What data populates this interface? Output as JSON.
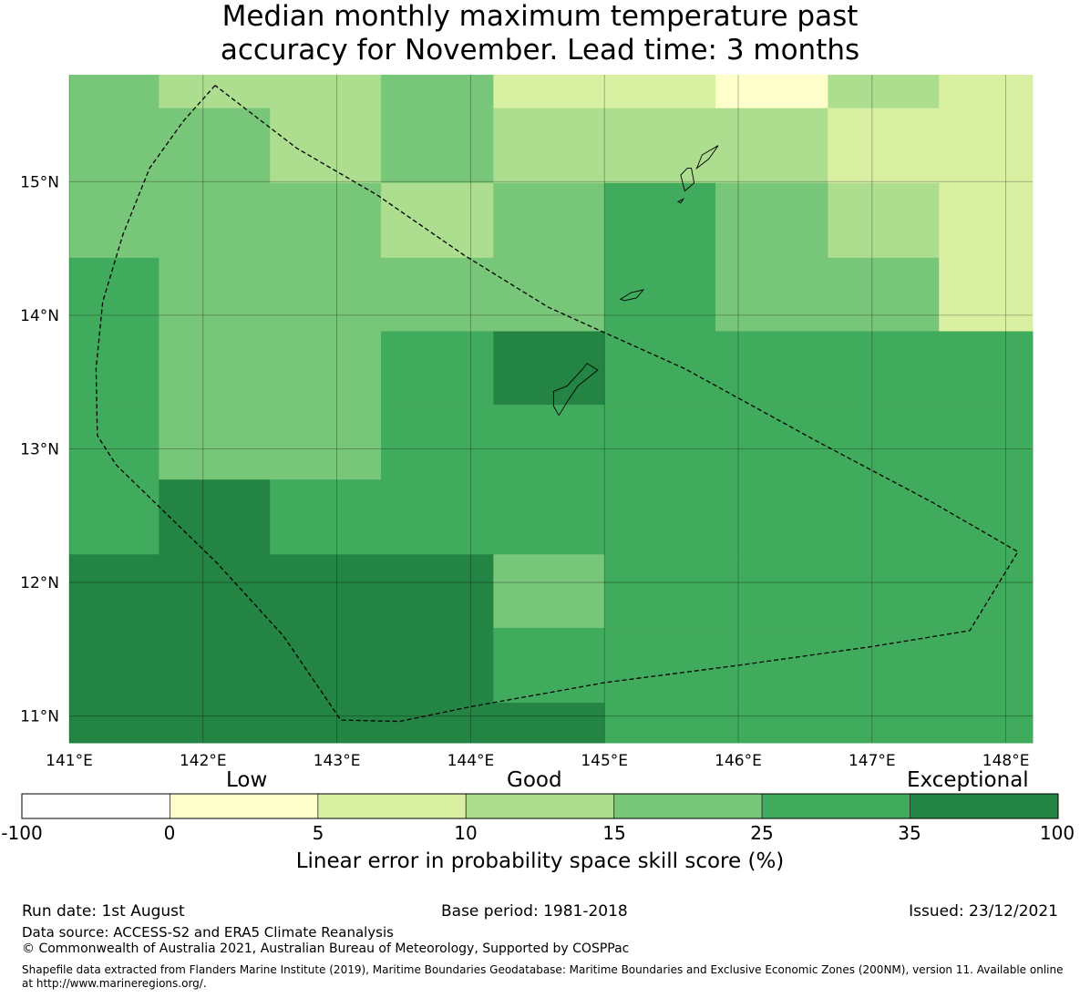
{
  "title_lines": [
    "Median monthly maximum temperature past",
    "accuracy for November. Lead time: 3 months"
  ],
  "map": {
    "lon_range": [
      141,
      148.2
    ],
    "lat_range": [
      10.8,
      15.8
    ],
    "lon_ticks": [
      "141°E",
      "142°E",
      "143°E",
      "144°E",
      "145°E",
      "146°E",
      "147°E",
      "148°E"
    ],
    "lat_ticks": [
      "11°N",
      "12°N",
      "13°N",
      "14°N",
      "15°N"
    ],
    "grid_cells": [
      {
        "lon": [
          141.0,
          141.67
        ],
        "lat": [
          15.55,
          15.8
        ],
        "bin": 4
      },
      {
        "lon": [
          141.67,
          142.5
        ],
        "lat": [
          15.55,
          15.8
        ],
        "bin": 3
      },
      {
        "lon": [
          142.5,
          143.33
        ],
        "lat": [
          15.55,
          15.8
        ],
        "bin": 3
      },
      {
        "lon": [
          143.33,
          144.17
        ],
        "lat": [
          15.55,
          15.8
        ],
        "bin": 4
      },
      {
        "lon": [
          144.17,
          145.0
        ],
        "lat": [
          15.55,
          15.8
        ],
        "bin": 2
      },
      {
        "lon": [
          145.0,
          145.83
        ],
        "lat": [
          15.55,
          15.8
        ],
        "bin": 2
      },
      {
        "lon": [
          145.83,
          146.67
        ],
        "lat": [
          15.55,
          15.8
        ],
        "bin": 1
      },
      {
        "lon": [
          146.67,
          147.5
        ],
        "lat": [
          15.55,
          15.8
        ],
        "bin": 3
      },
      {
        "lon": [
          147.5,
          148.2
        ],
        "lat": [
          15.55,
          15.8
        ],
        "bin": 2
      },
      {
        "lon": [
          141.0,
          141.67
        ],
        "lat": [
          14.99,
          15.55
        ],
        "bin": 4
      },
      {
        "lon": [
          141.67,
          142.5
        ],
        "lat": [
          14.99,
          15.55
        ],
        "bin": 4
      },
      {
        "lon": [
          142.5,
          143.33
        ],
        "lat": [
          14.99,
          15.55
        ],
        "bin": 3
      },
      {
        "lon": [
          143.33,
          144.17
        ],
        "lat": [
          14.99,
          15.55
        ],
        "bin": 4
      },
      {
        "lon": [
          144.17,
          145.0
        ],
        "lat": [
          14.99,
          15.55
        ],
        "bin": 3
      },
      {
        "lon": [
          145.0,
          145.83
        ],
        "lat": [
          14.99,
          15.55
        ],
        "bin": 3
      },
      {
        "lon": [
          145.83,
          146.67
        ],
        "lat": [
          14.99,
          15.55
        ],
        "bin": 3
      },
      {
        "lon": [
          146.67,
          147.5
        ],
        "lat": [
          14.99,
          15.55
        ],
        "bin": 2
      },
      {
        "lon": [
          147.5,
          148.2
        ],
        "lat": [
          14.99,
          15.55
        ],
        "bin": 2
      },
      {
        "lon": [
          141.0,
          141.67
        ],
        "lat": [
          14.43,
          14.99
        ],
        "bin": 4
      },
      {
        "lon": [
          141.67,
          142.5
        ],
        "lat": [
          14.43,
          14.99
        ],
        "bin": 4
      },
      {
        "lon": [
          142.5,
          143.33
        ],
        "lat": [
          14.43,
          14.99
        ],
        "bin": 4
      },
      {
        "lon": [
          143.33,
          144.17
        ],
        "lat": [
          14.43,
          14.99
        ],
        "bin": 3
      },
      {
        "lon": [
          144.17,
          145.0
        ],
        "lat": [
          14.43,
          14.99
        ],
        "bin": 4
      },
      {
        "lon": [
          145.0,
          145.83
        ],
        "lat": [
          14.43,
          14.99
        ],
        "bin": 5
      },
      {
        "lon": [
          145.83,
          146.67
        ],
        "lat": [
          14.43,
          14.99
        ],
        "bin": 4
      },
      {
        "lon": [
          146.67,
          147.5
        ],
        "lat": [
          14.43,
          14.99
        ],
        "bin": 3
      },
      {
        "lon": [
          147.5,
          148.2
        ],
        "lat": [
          14.43,
          14.99
        ],
        "bin": 2
      },
      {
        "lon": [
          141.0,
          141.67
        ],
        "lat": [
          13.88,
          14.43
        ],
        "bin": 5
      },
      {
        "lon": [
          141.67,
          142.5
        ],
        "lat": [
          13.88,
          14.43
        ],
        "bin": 4
      },
      {
        "lon": [
          142.5,
          143.33
        ],
        "lat": [
          13.88,
          14.43
        ],
        "bin": 4
      },
      {
        "lon": [
          143.33,
          144.17
        ],
        "lat": [
          13.88,
          14.43
        ],
        "bin": 4
      },
      {
        "lon": [
          144.17,
          145.0
        ],
        "lat": [
          13.88,
          14.43
        ],
        "bin": 4
      },
      {
        "lon": [
          145.0,
          145.83
        ],
        "lat": [
          13.88,
          14.43
        ],
        "bin": 5
      },
      {
        "lon": [
          145.83,
          146.67
        ],
        "lat": [
          13.88,
          14.43
        ],
        "bin": 4
      },
      {
        "lon": [
          146.67,
          147.5
        ],
        "lat": [
          13.88,
          14.43
        ],
        "bin": 4
      },
      {
        "lon": [
          147.5,
          148.2
        ],
        "lat": [
          13.88,
          14.43
        ],
        "bin": 2
      },
      {
        "lon": [
          141.0,
          141.67
        ],
        "lat": [
          13.33,
          13.88
        ],
        "bin": 5
      },
      {
        "lon": [
          141.67,
          142.5
        ],
        "lat": [
          13.33,
          13.88
        ],
        "bin": 4
      },
      {
        "lon": [
          142.5,
          143.33
        ],
        "lat": [
          13.33,
          13.88
        ],
        "bin": 4
      },
      {
        "lon": [
          143.33,
          144.17
        ],
        "lat": [
          13.33,
          13.88
        ],
        "bin": 5
      },
      {
        "lon": [
          144.17,
          145.0
        ],
        "lat": [
          13.33,
          13.88
        ],
        "bin": 6
      },
      {
        "lon": [
          145.0,
          145.83
        ],
        "lat": [
          13.33,
          13.88
        ],
        "bin": 5
      },
      {
        "lon": [
          145.83,
          146.67
        ],
        "lat": [
          13.33,
          13.88
        ],
        "bin": 5
      },
      {
        "lon": [
          146.67,
          147.5
        ],
        "lat": [
          13.33,
          13.88
        ],
        "bin": 5
      },
      {
        "lon": [
          147.5,
          148.2
        ],
        "lat": [
          13.33,
          13.88
        ],
        "bin": 5
      },
      {
        "lon": [
          141.0,
          141.67
        ],
        "lat": [
          12.77,
          13.33
        ],
        "bin": 5
      },
      {
        "lon": [
          141.67,
          142.5
        ],
        "lat": [
          12.77,
          13.33
        ],
        "bin": 4
      },
      {
        "lon": [
          142.5,
          143.33
        ],
        "lat": [
          12.77,
          13.33
        ],
        "bin": 4
      },
      {
        "lon": [
          143.33,
          144.17
        ],
        "lat": [
          12.77,
          13.33
        ],
        "bin": 5
      },
      {
        "lon": [
          144.17,
          145.0
        ],
        "lat": [
          12.77,
          13.33
        ],
        "bin": 5
      },
      {
        "lon": [
          145.0,
          145.83
        ],
        "lat": [
          12.77,
          13.33
        ],
        "bin": 5
      },
      {
        "lon": [
          145.83,
          146.67
        ],
        "lat": [
          12.77,
          13.33
        ],
        "bin": 5
      },
      {
        "lon": [
          146.67,
          147.5
        ],
        "lat": [
          12.77,
          13.33
        ],
        "bin": 5
      },
      {
        "lon": [
          147.5,
          148.2
        ],
        "lat": [
          12.77,
          13.33
        ],
        "bin": 5
      },
      {
        "lon": [
          141.0,
          141.67
        ],
        "lat": [
          12.21,
          12.77
        ],
        "bin": 5
      },
      {
        "lon": [
          141.67,
          142.5
        ],
        "lat": [
          12.21,
          12.77
        ],
        "bin": 6
      },
      {
        "lon": [
          142.5,
          143.33
        ],
        "lat": [
          12.21,
          12.77
        ],
        "bin": 5
      },
      {
        "lon": [
          143.33,
          144.17
        ],
        "lat": [
          12.21,
          12.77
        ],
        "bin": 5
      },
      {
        "lon": [
          144.17,
          145.0
        ],
        "lat": [
          12.21,
          12.77
        ],
        "bin": 5
      },
      {
        "lon": [
          145.0,
          145.83
        ],
        "lat": [
          12.21,
          12.77
        ],
        "bin": 5
      },
      {
        "lon": [
          145.83,
          146.67
        ],
        "lat": [
          12.21,
          12.77
        ],
        "bin": 5
      },
      {
        "lon": [
          146.67,
          147.5
        ],
        "lat": [
          12.21,
          12.77
        ],
        "bin": 5
      },
      {
        "lon": [
          147.5,
          148.2
        ],
        "lat": [
          12.21,
          12.77
        ],
        "bin": 5
      },
      {
        "lon": [
          141.0,
          141.67
        ],
        "lat": [
          11.66,
          12.21
        ],
        "bin": 6
      },
      {
        "lon": [
          141.67,
          142.5
        ],
        "lat": [
          11.66,
          12.21
        ],
        "bin": 6
      },
      {
        "lon": [
          142.5,
          143.33
        ],
        "lat": [
          11.66,
          12.21
        ],
        "bin": 6
      },
      {
        "lon": [
          143.33,
          144.17
        ],
        "lat": [
          11.66,
          12.21
        ],
        "bin": 6
      },
      {
        "lon": [
          144.17,
          145.0
        ],
        "lat": [
          11.66,
          12.21
        ],
        "bin": 4
      },
      {
        "lon": [
          145.0,
          145.83
        ],
        "lat": [
          11.66,
          12.21
        ],
        "bin": 5
      },
      {
        "lon": [
          145.83,
          146.67
        ],
        "lat": [
          11.66,
          12.21
        ],
        "bin": 5
      },
      {
        "lon": [
          146.67,
          147.5
        ],
        "lat": [
          11.66,
          12.21
        ],
        "bin": 5
      },
      {
        "lon": [
          147.5,
          148.2
        ],
        "lat": [
          11.66,
          12.21
        ],
        "bin": 5
      },
      {
        "lon": [
          141.0,
          141.67
        ],
        "lat": [
          11.1,
          11.66
        ],
        "bin": 6
      },
      {
        "lon": [
          141.67,
          142.5
        ],
        "lat": [
          11.1,
          11.66
        ],
        "bin": 6
      },
      {
        "lon": [
          142.5,
          143.33
        ],
        "lat": [
          11.1,
          11.66
        ],
        "bin": 6
      },
      {
        "lon": [
          143.33,
          144.17
        ],
        "lat": [
          11.1,
          11.66
        ],
        "bin": 6
      },
      {
        "lon": [
          144.17,
          145.0
        ],
        "lat": [
          11.1,
          11.66
        ],
        "bin": 5
      },
      {
        "lon": [
          145.0,
          145.83
        ],
        "lat": [
          11.1,
          11.66
        ],
        "bin": 5
      },
      {
        "lon": [
          145.83,
          146.67
        ],
        "lat": [
          11.1,
          11.66
        ],
        "bin": 5
      },
      {
        "lon": [
          146.67,
          147.5
        ],
        "lat": [
          11.1,
          11.66
        ],
        "bin": 5
      },
      {
        "lon": [
          147.5,
          148.2
        ],
        "lat": [
          11.1,
          11.66
        ],
        "bin": 5
      },
      {
        "lon": [
          141.0,
          141.67
        ],
        "lat": [
          10.8,
          11.1
        ],
        "bin": 6
      },
      {
        "lon": [
          141.67,
          142.5
        ],
        "lat": [
          10.8,
          11.1
        ],
        "bin": 6
      },
      {
        "lon": [
          142.5,
          143.33
        ],
        "lat": [
          10.8,
          11.1
        ],
        "bin": 6
      },
      {
        "lon": [
          143.33,
          144.17
        ],
        "lat": [
          10.8,
          11.1
        ],
        "bin": 6
      },
      {
        "lon": [
          144.17,
          145.0
        ],
        "lat": [
          10.8,
          11.1
        ],
        "bin": 6
      },
      {
        "lon": [
          145.0,
          145.83
        ],
        "lat": [
          10.8,
          11.1
        ],
        "bin": 5
      },
      {
        "lon": [
          145.83,
          146.67
        ],
        "lat": [
          10.8,
          11.1
        ],
        "bin": 5
      },
      {
        "lon": [
          146.67,
          147.5
        ],
        "lat": [
          10.8,
          11.1
        ],
        "bin": 5
      },
      {
        "lon": [
          147.5,
          148.2
        ],
        "lat": [
          10.8,
          11.1
        ],
        "bin": 5
      }
    ],
    "eez_boundary": [
      [
        142.09,
        15.72
      ],
      [
        141.85,
        15.45
      ],
      [
        141.6,
        15.1
      ],
      [
        141.4,
        14.6
      ],
      [
        141.25,
        14.1
      ],
      [
        141.2,
        13.6
      ],
      [
        141.21,
        13.1
      ],
      [
        141.35,
        12.88
      ],
      [
        142.1,
        12.15
      ],
      [
        142.6,
        11.6
      ],
      [
        143.03,
        10.97
      ],
      [
        143.47,
        10.96
      ],
      [
        144.0,
        11.07
      ],
      [
        145.0,
        11.25
      ],
      [
        146.0,
        11.38
      ],
      [
        147.0,
        11.52
      ],
      [
        147.73,
        11.64
      ],
      [
        148.09,
        12.23
      ],
      [
        147.45,
        12.6
      ],
      [
        146.6,
        13.05
      ],
      [
        145.6,
        13.6
      ],
      [
        145.0,
        13.87
      ],
      [
        144.58,
        14.06
      ],
      [
        143.95,
        14.45
      ],
      [
        143.3,
        14.9
      ],
      [
        142.7,
        15.25
      ],
      [
        142.09,
        15.72
      ]
    ],
    "islands": [
      [
        [
          145.85,
          15.27
        ],
        [
          145.73,
          15.2
        ],
        [
          145.69,
          15.1
        ],
        [
          145.78,
          15.17
        ],
        [
          145.85,
          15.27
        ]
      ],
      [
        [
          145.62,
          15.1
        ],
        [
          145.57,
          15.05
        ],
        [
          145.6,
          14.93
        ],
        [
          145.67,
          14.99
        ],
        [
          145.65,
          15.1
        ],
        [
          145.62,
          15.1
        ]
      ],
      [
        [
          145.55,
          14.85
        ],
        [
          145.59,
          14.87
        ],
        [
          145.57,
          14.84
        ],
        [
          145.55,
          14.85
        ]
      ],
      [
        [
          145.12,
          14.12
        ],
        [
          145.2,
          14.17
        ],
        [
          145.29,
          14.19
        ],
        [
          145.24,
          14.13
        ],
        [
          145.15,
          14.11
        ],
        [
          145.12,
          14.12
        ]
      ],
      [
        [
          144.87,
          13.64
        ],
        [
          144.95,
          13.59
        ],
        [
          144.8,
          13.47
        ],
        [
          144.72,
          13.35
        ],
        [
          144.66,
          13.25
        ],
        [
          144.62,
          13.32
        ],
        [
          144.62,
          13.43
        ],
        [
          144.72,
          13.47
        ],
        [
          144.84,
          13.6
        ],
        [
          144.87,
          13.64
        ]
      ]
    ]
  },
  "colorbar": {
    "categories": [
      "Low",
      "Good",
      "Exceptional"
    ],
    "bounds": [
      "-100",
      "0",
      "5",
      "10",
      "15",
      "25",
      "35",
      "100"
    ],
    "colors": [
      "#ffffff",
      "#ffffcc",
      "#d9f0a3",
      "#addd8e",
      "#78c679",
      "#41ab5d",
      "#238443"
    ],
    "label": "Linear error in probability space skill score (%)"
  },
  "footer": {
    "run_date": "Run date: 1st August",
    "base_period": "Base period: 1981-2018",
    "issued": "Issued: 23/12/2021",
    "data_source": "Data source: ACCESS-S2 and ERA5 Climate Reanalysis",
    "copyright": "© Commonwealth of Australia 2021, Australian Bureau of Meteorology, Supported by COSPPac",
    "shapefile_line1": "Shapefile data extracted from Flanders Marine Institute (2019), Maritime Boundaries Geodatabase: Maritime Boundaries and Exclusive Economic Zones (200NM), version 11. Available online",
    "shapefile_line2": "at http://www.marineregions.org/."
  }
}
